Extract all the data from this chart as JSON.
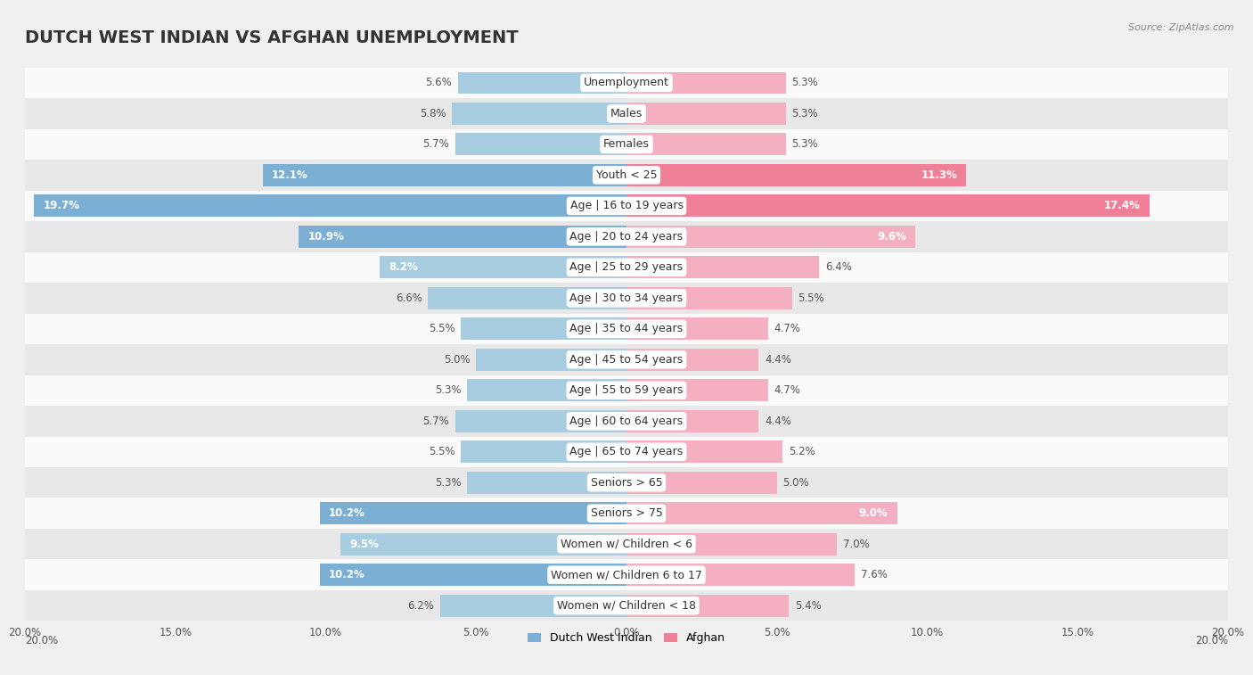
{
  "title": "DUTCH WEST INDIAN VS AFGHAN UNEMPLOYMENT",
  "source": "Source: ZipAtlas.com",
  "categories": [
    "Unemployment",
    "Males",
    "Females",
    "Youth < 25",
    "Age | 16 to 19 years",
    "Age | 20 to 24 years",
    "Age | 25 to 29 years",
    "Age | 30 to 34 years",
    "Age | 35 to 44 years",
    "Age | 45 to 54 years",
    "Age | 55 to 59 years",
    "Age | 60 to 64 years",
    "Age | 65 to 74 years",
    "Seniors > 65",
    "Seniors > 75",
    "Women w/ Children < 6",
    "Women w/ Children 6 to 17",
    "Women w/ Children < 18"
  ],
  "dutch_values": [
    5.6,
    5.8,
    5.7,
    12.1,
    19.7,
    10.9,
    8.2,
    6.6,
    5.5,
    5.0,
    5.3,
    5.7,
    5.5,
    5.3,
    10.2,
    9.5,
    10.2,
    6.2
  ],
  "afghan_values": [
    5.3,
    5.3,
    5.3,
    11.3,
    17.4,
    9.6,
    6.4,
    5.5,
    4.7,
    4.4,
    4.7,
    4.4,
    5.2,
    5.0,
    9.0,
    7.0,
    7.6,
    5.4
  ],
  "dutch_color": "#a8cce0",
  "afghan_color": "#f4b0c0",
  "dutch_strong_color": "#7bafd4",
  "afghan_strong_color": "#f08098",
  "bar_height": 0.72,
  "xlim": 20.0,
  "bg_color": "#f0f0f0",
  "row_light_color": "#fafafa",
  "row_dark_color": "#e8e8e8",
  "legend_dutch": "Dutch West Indian",
  "legend_afghan": "Afghan",
  "title_fontsize": 14,
  "label_fontsize": 9,
  "value_fontsize": 8.5,
  "threshold_white_label": 8.0
}
